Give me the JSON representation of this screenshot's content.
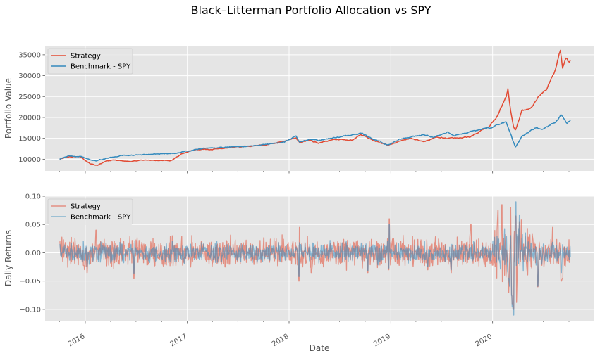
{
  "chart_data": {
    "type": "line",
    "title": "Black–Litterman Portfolio Allocation vs SPY",
    "xlabel": "Date",
    "x_range": [
      "2015-08-10",
      "2020-12-31"
    ],
    "x_ticks": [
      {
        "date": "2016-01-01",
        "label": "2016"
      },
      {
        "date": "2017-01-01",
        "label": "2017"
      },
      {
        "date": "2018-01-01",
        "label": "2018"
      },
      {
        "date": "2019-01-01",
        "label": "2019"
      },
      {
        "date": "2020-01-01",
        "label": "2020"
      }
    ],
    "style": "ggplot",
    "grid": true,
    "colors": {
      "strategy": "#E24A33",
      "benchmark": "#348ABD",
      "axes_bg": "#E5E5E5",
      "grid": "#ffffff",
      "tick_text": "#555555"
    },
    "panels": [
      {
        "ylabel": "Portfolio Value",
        "ylim": [
          7200,
          37000
        ],
        "yticks": [
          10000,
          15000,
          20000,
          25000,
          30000,
          35000
        ],
        "yticklabels": [
          "10000",
          "15000",
          "20000",
          "25000",
          "30000",
          "35000"
        ],
        "legend": "upper-left",
        "series": [
          {
            "name": "Strategy",
            "color": "#E24A33",
            "points": [
              [
                "2015-10-01",
                10000
              ],
              [
                "2015-11-01",
                10600
              ],
              [
                "2015-12-15",
                10600
              ],
              [
                "2016-01-20",
                8900
              ],
              [
                "2016-02-15",
                8500
              ],
              [
                "2016-03-15",
                9500
              ],
              [
                "2016-04-15",
                9800
              ],
              [
                "2016-06-15",
                9400
              ],
              [
                "2016-07-15",
                9800
              ],
              [
                "2016-09-15",
                9700
              ],
              [
                "2016-11-01",
                9600
              ],
              [
                "2016-12-15",
                11400
              ],
              [
                "2017-02-01",
                12300
              ],
              [
                "2017-04-15",
                12400
              ],
              [
                "2017-06-15",
                12900
              ],
              [
                "2017-08-15",
                13100
              ],
              [
                "2017-10-15",
                13500
              ],
              [
                "2017-12-15",
                14300
              ],
              [
                "2018-01-25",
                15200
              ],
              [
                "2018-02-09",
                14000
              ],
              [
                "2018-03-15",
                14600
              ],
              [
                "2018-04-15",
                13800
              ],
              [
                "2018-06-15",
                14800
              ],
              [
                "2018-08-15",
                14600
              ],
              [
                "2018-09-15",
                16000
              ],
              [
                "2018-10-29",
                14500
              ],
              [
                "2018-12-24",
                13300
              ],
              [
                "2019-02-15",
                14600
              ],
              [
                "2019-03-15",
                15000
              ],
              [
                "2019-05-01",
                14200
              ],
              [
                "2019-06-15",
                15200
              ],
              [
                "2019-08-15",
                15000
              ],
              [
                "2019-10-15",
                15400
              ],
              [
                "2019-12-20",
                18000
              ],
              [
                "2020-01-15",
                20000
              ],
              [
                "2020-02-19",
                25000
              ],
              [
                "2020-02-25",
                27000
              ],
              [
                "2020-03-05",
                22000
              ],
              [
                "2020-03-16",
                18000
              ],
              [
                "2020-03-23",
                17000
              ],
              [
                "2020-04-15",
                21500
              ],
              [
                "2020-05-15",
                22000
              ],
              [
                "2020-06-15",
                25000
              ],
              [
                "2020-07-15",
                27000
              ],
              [
                "2020-08-15",
                32000
              ],
              [
                "2020-08-31",
                36200
              ],
              [
                "2020-09-08",
                31800
              ],
              [
                "2020-09-20",
                34000
              ],
              [
                "2020-10-01",
                33000
              ],
              [
                "2020-10-06",
                33700
              ]
            ]
          },
          {
            "name": "Benchmark - SPY",
            "color": "#348ABD",
            "points": [
              [
                "2015-10-01",
                10000
              ],
              [
                "2015-11-01",
                10800
              ],
              [
                "2015-12-15",
                10600
              ],
              [
                "2016-01-20",
                9800
              ],
              [
                "2016-02-11",
                9600
              ],
              [
                "2016-03-15",
                10200
              ],
              [
                "2016-05-15",
                10900
              ],
              [
                "2016-07-15",
                11000
              ],
              [
                "2016-09-15",
                11200
              ],
              [
                "2016-11-15",
                11400
              ],
              [
                "2016-12-31",
                11900
              ],
              [
                "2017-03-01",
                12600
              ],
              [
                "2017-06-15",
                12900
              ],
              [
                "2017-09-15",
                13300
              ],
              [
                "2017-12-15",
                14100
              ],
              [
                "2018-01-26",
                15500
              ],
              [
                "2018-02-08",
                14200
              ],
              [
                "2018-03-15",
                14800
              ],
              [
                "2018-04-15",
                14500
              ],
              [
                "2018-06-15",
                15200
              ],
              [
                "2018-09-20",
                16200
              ],
              [
                "2018-10-29",
                14800
              ],
              [
                "2018-12-24",
                13400
              ],
              [
                "2019-02-01",
                14800
              ],
              [
                "2019-04-30",
                16000
              ],
              [
                "2019-06-03",
                15200
              ],
              [
                "2019-07-26",
                16500
              ],
              [
                "2019-08-15",
                15700
              ],
              [
                "2019-10-15",
                16600
              ],
              [
                "2019-12-31",
                17800
              ],
              [
                "2020-02-19",
                19000
              ],
              [
                "2020-03-23",
                12800
              ],
              [
                "2020-04-15",
                15500
              ],
              [
                "2020-06-08",
                17700
              ],
              [
                "2020-06-26",
                17000
              ],
              [
                "2020-08-15",
                18900
              ],
              [
                "2020-09-02",
                20400
              ],
              [
                "2020-09-23",
                18700
              ],
              [
                "2020-10-06",
                19300
              ]
            ]
          }
        ]
      },
      {
        "ylabel": "Daily Returns",
        "ylim": [
          -0.12,
          0.1
        ],
        "yticks": [
          -0.1,
          -0.05,
          0.0,
          0.05,
          0.1
        ],
        "yticklabels": [
          "−0.10",
          "−0.05",
          "0.00",
          "0.05",
          "0.10"
        ],
        "legend": "upper-left",
        "series": [
          {
            "name": "Strategy",
            "color": "#E24A33",
            "opacity": 0.55,
            "start": "2015-10-01",
            "end": "2020-10-06",
            "base_amplitude": 0.016,
            "spikes": [
              [
                "2015-10-01",
                0.02
              ],
              [
                "2016-01-08",
                -0.035
              ],
              [
                "2016-02-09",
                0.04
              ],
              [
                "2016-06-24",
                -0.045
              ],
              [
                "2016-11-09",
                0.03
              ],
              [
                "2017-05-17",
                -0.025
              ],
              [
                "2018-02-05",
                -0.05
              ],
              [
                "2018-02-06",
                0.045
              ],
              [
                "2018-03-22",
                -0.035
              ],
              [
                "2018-10-10",
                -0.035
              ],
              [
                "2018-12-24",
                -0.03
              ],
              [
                "2018-12-26",
                0.06
              ],
              [
                "2019-05-13",
                -0.03
              ],
              [
                "2019-08-05",
                -0.035
              ],
              [
                "2019-10-15",
                0.05
              ],
              [
                "2020-01-20",
                0.075
              ],
              [
                "2020-02-03",
                0.085
              ],
              [
                "2020-02-27",
                -0.07
              ],
              [
                "2020-03-09",
                -0.075
              ],
              [
                "2020-03-12",
                -0.09
              ],
              [
                "2020-03-16",
                -0.1
              ],
              [
                "2020-03-24",
                0.065
              ],
              [
                "2020-04-06",
                0.055
              ],
              [
                "2020-06-11",
                -0.06
              ],
              [
                "2020-08-03",
                0.045
              ],
              [
                "2020-09-03",
                -0.05
              ],
              [
                "2020-09-08",
                -0.045
              ]
            ]
          },
          {
            "name": "Benchmark - SPY",
            "color": "#348ABD",
            "opacity": 0.55,
            "start": "2015-10-01",
            "end": "2020-10-06",
            "base_amplitude": 0.011,
            "spikes": [
              [
                "2015-10-01",
                0.015
              ],
              [
                "2016-01-08",
                -0.025
              ],
              [
                "2016-06-24",
                -0.036
              ],
              [
                "2016-11-09",
                0.02
              ],
              [
                "2018-02-05",
                -0.042
              ],
              [
                "2018-02-06",
                0.018
              ],
              [
                "2018-10-10",
                -0.032
              ],
              [
                "2018-12-24",
                -0.027
              ],
              [
                "2018-12-26",
                0.05
              ],
              [
                "2019-05-13",
                -0.024
              ],
              [
                "2019-08-05",
                -0.03
              ],
              [
                "2020-02-24",
                -0.034
              ],
              [
                "2020-02-27",
                -0.045
              ],
              [
                "2020-03-09",
                -0.076
              ],
              [
                "2020-03-12",
                -0.095
              ],
              [
                "2020-03-13",
                0.085
              ],
              [
                "2020-03-16",
                -0.11
              ],
              [
                "2020-03-24",
                0.09
              ],
              [
                "2020-04-06",
                0.067
              ],
              [
                "2020-06-11",
                -0.059
              ],
              [
                "2020-09-03",
                -0.035
              ]
            ]
          }
        ]
      }
    ]
  }
}
